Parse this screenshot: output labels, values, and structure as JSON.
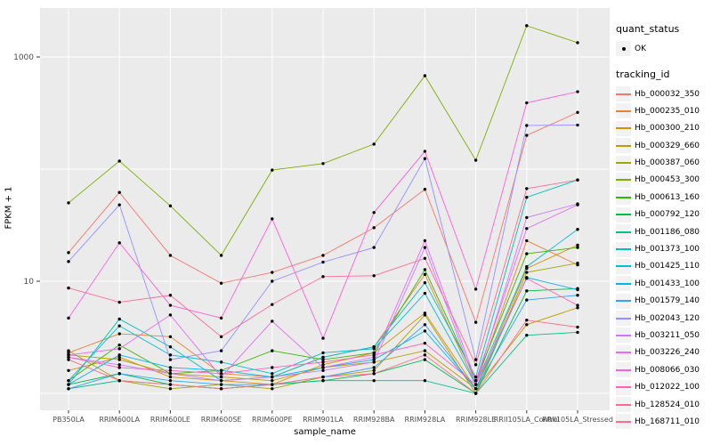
{
  "figure": {
    "background": "#FFFFFF",
    "panel_bg": "#EBEBEB",
    "grid_color": "#FFFFFF",
    "point_color": "#000000",
    "axis_text_color": "#4D4D4D"
  },
  "axes": {
    "x_title": "sample_name",
    "y_title": "FPKM + 1",
    "y_tick_labels": [
      "1000",
      "10"
    ],
    "y_tick_values": [
      1000,
      10
    ]
  },
  "legend": {
    "quant_status_title": "quant_status",
    "ok_label": "OK",
    "tracking_id_title": "tracking_id"
  },
  "chart_data": {
    "type": "line",
    "title": "",
    "xlabel": "sample_name",
    "ylabel": "FPKM + 1",
    "y_scale": "log10",
    "ylim": [
      0.75,
      2700
    ],
    "grid": true,
    "legend_position": "right",
    "marker": "black point (quant_status OK)",
    "categories": [
      "PB350LA",
      "RRIM600LA",
      "RRIM600LE",
      "RRIM600SE",
      "RRIM600PE",
      "RRIM901LA",
      "RRIM928BA",
      "RRIM928LA",
      "RRIM928LE",
      "RRII105LA_Control",
      "RRII105LA_Stressed"
    ],
    "series": [
      {
        "name": "Hb_000032_350",
        "color": "#F8766D",
        "values": [
          18,
          62,
          17,
          9.6,
          12,
          17,
          30,
          66,
          4.3,
          200,
          320
        ]
      },
      {
        "name": "Hb_000235_010",
        "color": "#EA8331",
        "values": [
          2.3,
          3.4,
          3.2,
          1.5,
          1.4,
          2.1,
          2.6,
          11.5,
          1.2,
          23,
          14
        ]
      },
      {
        "name": "Hb_000300_210",
        "color": "#D89000",
        "values": [
          1.6,
          2.1,
          1.4,
          1.3,
          1.2,
          1.8,
          2.3,
          5.2,
          1.1,
          13,
          21
        ]
      },
      {
        "name": "Hb_000329_660",
        "color": "#C09B00",
        "values": [
          2.2,
          2.0,
          1.5,
          1.4,
          1.3,
          1.7,
          1.9,
          2.4,
          1.1,
          4.1,
          5.8
        ]
      },
      {
        "name": "Hb_000387_060",
        "color": "#A3A500",
        "values": [
          2.4,
          1.3,
          1.1,
          1.2,
          1.1,
          1.4,
          1.6,
          5.0,
          1.0,
          12,
          14.5
        ]
      },
      {
        "name": "Hb_000453_300",
        "color": "#7CAE00",
        "values": [
          50,
          118,
          47,
          17,
          98,
          112,
          167,
          680,
          120,
          1900,
          1340
        ]
      },
      {
        "name": "Hb_000613_160",
        "color": "#39B600",
        "values": [
          1.3,
          2.7,
          1.5,
          1.6,
          2.4,
          2.0,
          2.3,
          12.7,
          1.3,
          17.6,
          20
        ]
      },
      {
        "name": "Hb_000792_120",
        "color": "#00BB4E",
        "values": [
          1.2,
          1.5,
          1.2,
          1.1,
          1.2,
          1.3,
          1.5,
          2.0,
          1.0,
          8.2,
          8.6
        ]
      },
      {
        "name": "Hb_001186_080",
        "color": "#00C087",
        "values": [
          1.1,
          1.3,
          1.2,
          1.1,
          1.2,
          1.3,
          1.3,
          1.3,
          1.0,
          3.3,
          3.5
        ]
      },
      {
        "name": "Hb_001373_100",
        "color": "#00C0B8",
        "values": [
          1.2,
          4.6,
          2.6,
          1.3,
          1.4,
          2.1,
          2.6,
          9.7,
          1.4,
          56,
          80
        ]
      },
      {
        "name": "Hb_001425_110",
        "color": "#00BCD8",
        "values": [
          1.3,
          4.0,
          2.2,
          1.9,
          1.5,
          2.3,
          2.5,
          7.8,
          1.2,
          13.5,
          29
        ]
      },
      {
        "name": "Hb_001433_100",
        "color": "#00B3F0",
        "values": [
          1.2,
          2.2,
          1.7,
          1.6,
          1.4,
          1.7,
          2.0,
          3.6,
          1.1,
          10.8,
          8.4
        ]
      },
      {
        "name": "Hb_001579_140",
        "color": "#35A2FF",
        "values": [
          1.1,
          1.5,
          1.3,
          1.2,
          1.2,
          1.4,
          1.7,
          4.1,
          1.1,
          6.8,
          7.5
        ]
      },
      {
        "name": "Hb_002043_120",
        "color": "#9590FF",
        "values": [
          15,
          48,
          2.0,
          2.4,
          10,
          14.8,
          20,
          124,
          2.0,
          245,
          247
        ]
      },
      {
        "name": "Hb_003211_050",
        "color": "#C77CFF",
        "values": [
          2.1,
          1.8,
          1.5,
          1.3,
          1.4,
          1.6,
          1.9,
          20,
          1.2,
          37,
          49
        ]
      },
      {
        "name": "Hb_003226_240",
        "color": "#E76BF3",
        "values": [
          2.2,
          2.5,
          5.0,
          1.4,
          4.4,
          1.7,
          2.1,
          23,
          1.3,
          29.5,
          48
        ]
      },
      {
        "name": "Hb_008066_030",
        "color": "#FA62DB",
        "values": [
          4.7,
          22,
          6.1,
          4.7,
          36,
          3.1,
          41,
          144,
          8.5,
          390,
          490
        ]
      },
      {
        "name": "Hb_012022_100",
        "color": "#FF62BC",
        "values": [
          2.1,
          1.7,
          1.6,
          1.5,
          1.7,
          1.9,
          2.2,
          2.8,
          1.2,
          10.6,
          6.1
        ]
      },
      {
        "name": "Hb_128524_010",
        "color": "#FF6A98",
        "values": [
          8.7,
          6.5,
          7.5,
          3.2,
          6.2,
          11,
          11.2,
          16,
          1.8,
          67,
          80
        ]
      },
      {
        "name": "Hb_168711_010",
        "color": "#FE6E8A",
        "values": [
          2.0,
          1.3,
          1.2,
          1.1,
          1.2,
          1.4,
          1.5,
          2.2,
          1.0,
          4.5,
          3.9
        ]
      }
    ]
  }
}
